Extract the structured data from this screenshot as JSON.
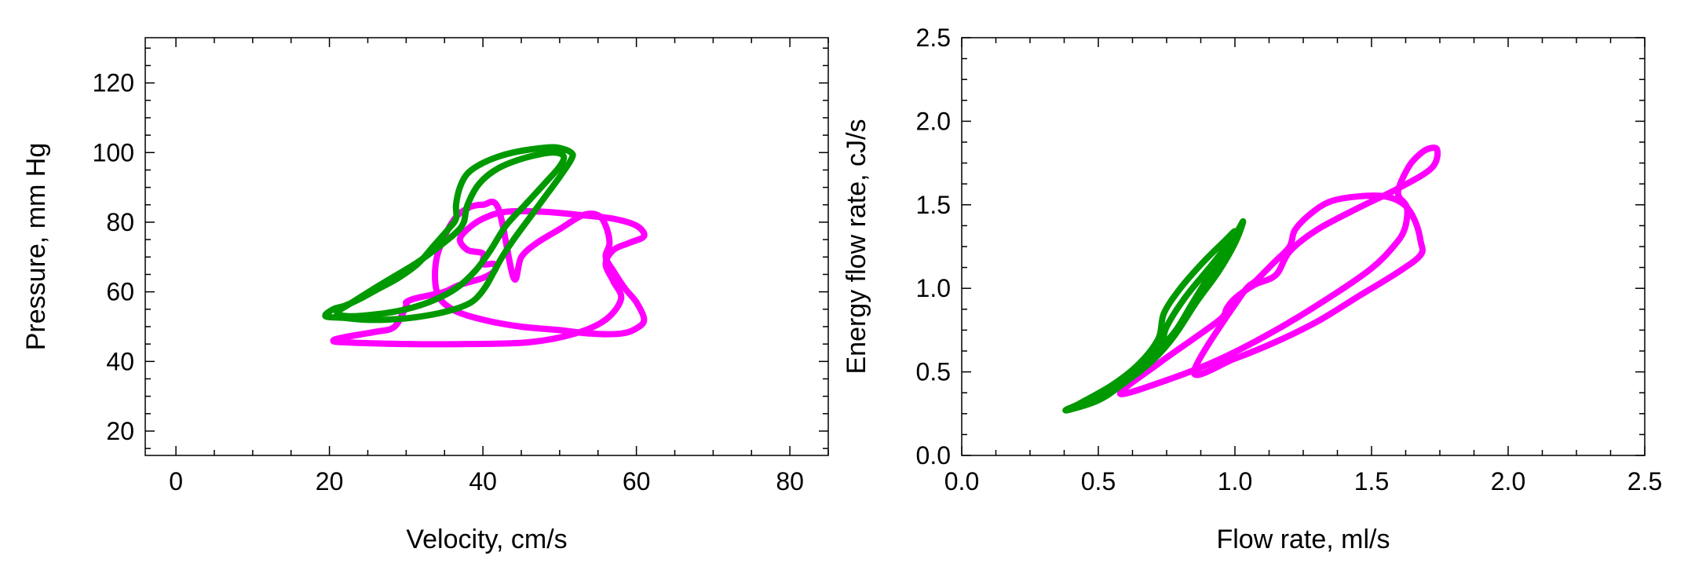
{
  "chart_data": [
    {
      "type": "line",
      "title": "",
      "xlabel": "Velocity, cm/s",
      "ylabel": "Pressure, mm Hg",
      "xlim": [
        -4,
        85
      ],
      "ylim": [
        13,
        133
      ],
      "xticks": [
        0,
        20,
        40,
        60,
        80
      ],
      "xtick_labels": [
        "0",
        "20",
        "40",
        "60",
        "80"
      ],
      "yticks": [
        20,
        40,
        60,
        80,
        100,
        120
      ],
      "ytick_labels": [
        "20",
        "40",
        "60",
        "80",
        "100",
        "120"
      ],
      "grid": false,
      "legend": "none",
      "series": [
        {
          "color": "#ff00ff",
          "closed": true,
          "x": [
            28.5,
            26,
            22,
            20.5,
            22,
            30,
            38,
            46,
            52,
            56,
            58,
            57,
            56,
            57,
            59,
            61,
            60,
            57,
            53,
            48,
            43,
            40,
            38,
            37,
            38,
            40,
            40,
            41.5,
            41.5,
            40,
            37,
            35,
            33,
            31,
            30,
            30
          ],
          "y": [
            50,
            48.5,
            47,
            46,
            45.5,
            45,
            45,
            45.5,
            48,
            52,
            58,
            63,
            68,
            72,
            74,
            76,
            79,
            81,
            82,
            83,
            83,
            81,
            78,
            75,
            72,
            71,
            68,
            68,
            66,
            64,
            62,
            60,
            59,
            58,
            57,
            56
          ]
        },
        {
          "color": "#ff00ff",
          "closed": true,
          "x": [
            44,
            45,
            47,
            50,
            53,
            55,
            56,
            56.5,
            56,
            57,
            58.5,
            60,
            61,
            60,
            58,
            54,
            50,
            45,
            40,
            36,
            34,
            34,
            36,
            38,
            40,
            42
          ],
          "y": [
            64,
            70,
            74,
            78,
            82,
            82,
            79,
            74,
            70,
            66,
            61,
            57,
            52,
            49.5,
            48,
            48,
            49,
            50,
            52,
            55,
            60,
            70,
            80,
            84,
            85,
            84
          ]
        },
        {
          "color": "#009900",
          "closed": true,
          "x": [
            19.5,
            20.5,
            22,
            24,
            26.5,
            29,
            31.5,
            33.5,
            35.5,
            36.5,
            36.5,
            37,
            38,
            40,
            43,
            46.5,
            49.5,
            51.5,
            51.5,
            50,
            48,
            46,
            44,
            42.5,
            41.5,
            40.5,
            39.5,
            38.5,
            37,
            35.5,
            33.5,
            30.5,
            27.5,
            24.5,
            22
          ],
          "y": [
            53,
            55,
            56,
            58,
            61,
            64,
            68,
            73,
            78,
            81,
            85,
            90,
            94,
            97,
            99.5,
            101,
            101.5,
            100,
            98,
            93,
            87,
            81,
            75,
            70,
            66,
            62,
            59,
            57,
            55.5,
            54.5,
            53.5,
            52.5,
            52,
            52,
            52.5
          ]
        },
        {
          "color": "#009900",
          "closed": true,
          "x": [
            21,
            23,
            25.5,
            28.5,
            31.5,
            34,
            36.5,
            37.5,
            38,
            39.5,
            42,
            45.5,
            49,
            50.5,
            50,
            48,
            45.5,
            43,
            41,
            39,
            36.5,
            33.5,
            30,
            26,
            22.5
          ],
          "y": [
            54,
            57,
            60.5,
            64.5,
            68.5,
            72.5,
            77,
            80,
            85,
            91,
            95.5,
            98.5,
            100,
            99,
            96,
            91,
            85,
            79,
            72,
            66,
            61,
            57.5,
            55,
            53.5,
            53
          ]
        }
      ]
    },
    {
      "type": "line",
      "title": "",
      "xlabel": "Flow rate, ml/s",
      "ylabel": "Energy flow rate, cJ/s",
      "xlim": [
        0.0,
        2.5
      ],
      "ylim": [
        0.0,
        2.5
      ],
      "xticks": [
        0.0,
        0.5,
        1.0,
        1.5,
        2.0,
        2.5
      ],
      "xtick_labels": [
        "0.0",
        "0.5",
        "1.0",
        "1.5",
        "2.0",
        "2.5"
      ],
      "yticks": [
        0.0,
        0.5,
        1.0,
        1.5,
        2.0,
        2.5
      ],
      "ytick_labels": [
        "0.0",
        "0.5",
        "1.0",
        "1.5",
        "2.0",
        "2.5"
      ],
      "grid": false,
      "legend": "none",
      "series": [
        {
          "color": "#ff00ff",
          "closed": true,
          "x": [
            0.58,
            0.75,
            0.95,
            1.15,
            1.35,
            1.5,
            1.58,
            1.62,
            1.63,
            1.6,
            1.6,
            1.62,
            1.65,
            1.7,
            1.74,
            1.72,
            1.6,
            1.45,
            1.3,
            1.2,
            1.15,
            1.07,
            1.0,
            0.97,
            0.95,
            0.85,
            0.72
          ],
          "y": [
            0.37,
            0.45,
            0.58,
            0.75,
            0.95,
            1.12,
            1.25,
            1.35,
            1.48,
            1.55,
            1.6,
            1.68,
            1.76,
            1.83,
            1.83,
            1.72,
            1.6,
            1.48,
            1.35,
            1.22,
            1.08,
            1.02,
            0.94,
            0.88,
            0.82,
            0.7,
            0.55
          ]
        },
        {
          "color": "#ff00ff",
          "closed": true,
          "x": [
            0.85,
            1.0,
            1.15,
            1.3,
            1.45,
            1.6,
            1.68,
            1.68,
            1.66,
            1.62,
            1.55,
            1.45,
            1.35,
            1.28,
            1.22,
            1.2,
            1.14,
            1.08,
            1.02
          ],
          "y": [
            0.5,
            0.58,
            0.68,
            0.8,
            0.95,
            1.1,
            1.2,
            1.28,
            1.4,
            1.5,
            1.55,
            1.55,
            1.52,
            1.45,
            1.35,
            1.25,
            1.15,
            1.05,
            0.95
          ]
        },
        {
          "color": "#009900",
          "closed": true,
          "x": [
            0.38,
            0.5,
            0.62,
            0.72,
            0.75,
            0.82,
            0.92,
            1.0,
            1.03,
            1.0,
            0.94,
            0.86,
            0.78,
            0.7,
            0.6,
            0.5
          ],
          "y": [
            0.27,
            0.36,
            0.47,
            0.62,
            0.77,
            0.95,
            1.15,
            1.32,
            1.4,
            1.27,
            1.1,
            0.92,
            0.72,
            0.57,
            0.44,
            0.33
          ]
        },
        {
          "color": "#009900",
          "closed": true,
          "x": [
            0.42,
            0.55,
            0.65,
            0.72,
            0.74,
            0.8,
            0.88,
            0.96,
            1.0,
            0.96,
            0.9,
            0.84,
            0.78,
            0.7,
            0.6,
            0.5
          ],
          "y": [
            0.3,
            0.42,
            0.55,
            0.7,
            0.85,
            1.0,
            1.15,
            1.28,
            1.34,
            1.22,
            1.06,
            0.9,
            0.74,
            0.6,
            0.47,
            0.36
          ]
        }
      ]
    }
  ]
}
